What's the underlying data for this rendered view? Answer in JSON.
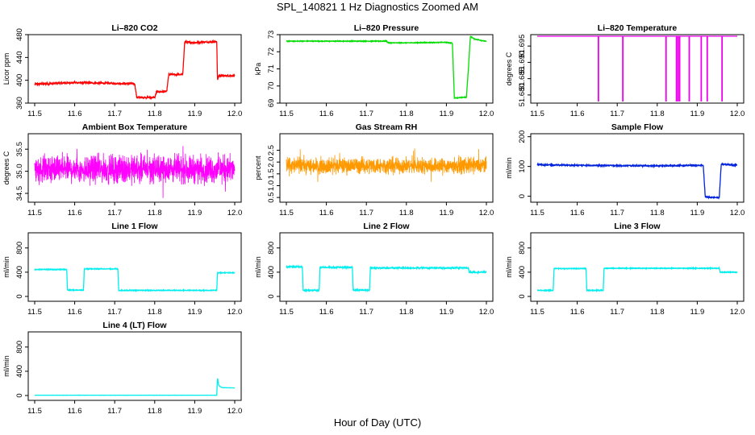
{
  "figure": {
    "title": "SPL_140821  1 Hz Diagnostics Zoomed AM",
    "xlabel": "Hour of Day (UTC)"
  },
  "chart_data": [
    {
      "type": "line",
      "title": "Li–820 CO2",
      "ylabel": "Licor ppm",
      "color": "#ff0000",
      "xlim": [
        11.5,
        12.0
      ],
      "ylim": [
        360,
        480
      ],
      "xticks": [
        "11.5",
        "11.6",
        "11.7",
        "11.8",
        "11.9",
        "12.0"
      ],
      "yticks": [
        "360",
        "400",
        "440",
        "480"
      ],
      "noise": 1.5,
      "series": [
        {
          "x": [
            11.5,
            11.53,
            11.6,
            11.67,
            11.75,
            11.755,
            11.8,
            11.805,
            11.83,
            11.835,
            11.87,
            11.875,
            11.9,
            11.955,
            11.957,
            11.96,
            12.0
          ],
          "y": [
            393,
            394,
            396,
            395,
            394,
            370,
            370,
            380,
            380,
            410,
            410,
            467,
            466,
            468,
            400,
            408,
            408
          ]
        }
      ]
    },
    {
      "type": "line",
      "title": "Li–820 Pressure",
      "ylabel": "kPa",
      "color": "#00dd00",
      "xlim": [
        11.5,
        12.0
      ],
      "ylim": [
        69,
        73
      ],
      "xticks": [
        "11.5",
        "11.6",
        "11.7",
        "11.8",
        "11.9",
        "12.0"
      ],
      "yticks": [
        "69",
        "70",
        "71",
        "72",
        "73"
      ],
      "noise": 0.02,
      "series": [
        {
          "x": [
            11.5,
            11.75,
            11.755,
            11.8,
            11.9,
            11.915,
            11.92,
            11.95,
            11.955,
            11.96,
            11.97,
            12.0
          ],
          "y": [
            72.62,
            72.62,
            72.52,
            72.52,
            72.55,
            72.5,
            69.3,
            69.35,
            71.0,
            72.9,
            72.75,
            72.6
          ]
        }
      ]
    },
    {
      "type": "line",
      "title": "Li–820 Temperature",
      "ylabel": "degrees C",
      "color": "#ee00ee",
      "xlim": [
        11.5,
        12.0
      ],
      "ylim": [
        51.6775,
        51.6985
      ],
      "xticks": [
        "11.5",
        "11.6",
        "11.7",
        "11.8",
        "11.9",
        "12.0"
      ],
      "yticks": [
        "51.680",
        "51.685",
        "51.690",
        "51.695"
      ],
      "baseline": 51.698,
      "spike_low": 51.678,
      "spikes_x": [
        11.653,
        11.714,
        11.822,
        11.848,
        11.852,
        11.856,
        11.88,
        11.91,
        11.925,
        11.962
      ]
    },
    {
      "type": "line",
      "title": "Ambient Box Temperature",
      "ylabel": "degrees C",
      "color": "#ff00ff",
      "xlim": [
        11.5,
        12.0
      ],
      "ylim": [
        34.3,
        35.85
      ],
      "xticks": [
        "11.5",
        "11.6",
        "11.7",
        "11.8",
        "11.9",
        "12.0"
      ],
      "yticks": [
        "34.5",
        "35.0",
        "35.5"
      ],
      "mean": 35.05,
      "spread": 0.45
    },
    {
      "type": "line",
      "title": "Gas Stream RH",
      "ylabel": "percent",
      "color": "#ff9900",
      "xlim": [
        11.5,
        12.0
      ],
      "ylim": [
        0.3,
        3.2
      ],
      "xticks": [
        "11.5",
        "11.6",
        "11.7",
        "11.8",
        "11.9",
        "12.0"
      ],
      "yticks": [
        "0.5",
        "1.0",
        "1.5",
        "2.0",
        "2.5"
      ],
      "mean": 1.85,
      "spread": 0.5
    },
    {
      "type": "line",
      "title": "Sample Flow",
      "ylabel": "ml/min",
      "color": "#0022dd",
      "xlim": [
        11.5,
        12.0
      ],
      "ylim": [
        -20,
        210
      ],
      "xticks": [
        "11.5",
        "11.6",
        "11.7",
        "11.8",
        "11.9",
        "12.0"
      ],
      "yticks": [
        "0",
        "100",
        "200"
      ],
      "noise": 2,
      "series": [
        {
          "x": [
            11.5,
            11.6,
            11.7,
            11.8,
            11.9,
            11.915,
            11.92,
            11.955,
            11.96,
            12.0
          ],
          "y": [
            106,
            104,
            103,
            102,
            104,
            104,
            -2,
            -5,
            108,
            104
          ]
        }
      ]
    },
    {
      "type": "line",
      "title": "Line 1 Flow",
      "ylabel": "ml/min",
      "color": "#00eeee",
      "xlim": [
        11.5,
        12.0
      ],
      "ylim": [
        -80,
        1050
      ],
      "xticks": [
        "11.5",
        "11.6",
        "11.7",
        "11.8",
        "11.9",
        "12.0"
      ],
      "yticks": [
        "0",
        "400",
        "800"
      ],
      "noise": 6,
      "series": [
        {
          "x": [
            11.5,
            11.58,
            11.582,
            11.622,
            11.624,
            11.708,
            11.71,
            11.955,
            11.957,
            12.0
          ],
          "y": [
            445,
            445,
            105,
            105,
            455,
            455,
            100,
            100,
            390,
            390
          ]
        }
      ]
    },
    {
      "type": "line",
      "title": "Line 2 Flow",
      "ylabel": "ml/min",
      "color": "#00eeee",
      "xlim": [
        11.5,
        12.0
      ],
      "ylim": [
        -80,
        1050
      ],
      "xticks": [
        "11.5",
        "11.6",
        "11.7",
        "11.8",
        "11.9",
        "12.0"
      ],
      "yticks": [
        "0",
        "400",
        "800"
      ],
      "noise": 10,
      "series": [
        {
          "x": [
            11.5,
            11.54,
            11.542,
            11.582,
            11.584,
            11.665,
            11.667,
            11.708,
            11.71,
            11.955,
            11.957,
            12.0
          ],
          "y": [
            490,
            490,
            100,
            100,
            480,
            480,
            105,
            105,
            470,
            470,
            400,
            400
          ]
        }
      ]
    },
    {
      "type": "line",
      "title": "Line 3 Flow",
      "ylabel": "ml/min",
      "color": "#00eeee",
      "xlim": [
        11.5,
        12.0
      ],
      "ylim": [
        -80,
        1050
      ],
      "xticks": [
        "11.5",
        "11.6",
        "11.7",
        "11.8",
        "11.9",
        "12.0"
      ],
      "yticks": [
        "0",
        "400",
        "800"
      ],
      "noise": 6,
      "series": [
        {
          "x": [
            11.5,
            11.54,
            11.542,
            11.622,
            11.624,
            11.665,
            11.667,
            11.955,
            11.957,
            12.0
          ],
          "y": [
            100,
            100,
            460,
            460,
            100,
            100,
            465,
            465,
            400,
            400
          ]
        }
      ]
    },
    {
      "type": "line",
      "title": "Line 4 (LT) Flow",
      "ylabel": "ml/min",
      "color": "#00eeee",
      "xlim": [
        11.5,
        12.0
      ],
      "ylim": [
        -80,
        1050
      ],
      "xticks": [
        "11.5",
        "11.6",
        "11.7",
        "11.8",
        "11.9",
        "12.0"
      ],
      "yticks": [
        "0",
        "400",
        "800"
      ],
      "noise": 1,
      "series": [
        {
          "x": [
            11.5,
            11.955,
            11.957,
            11.96,
            11.965,
            11.97,
            12.0
          ],
          "y": [
            5,
            5,
            290,
            170,
            140,
            130,
            125
          ]
        }
      ]
    }
  ]
}
